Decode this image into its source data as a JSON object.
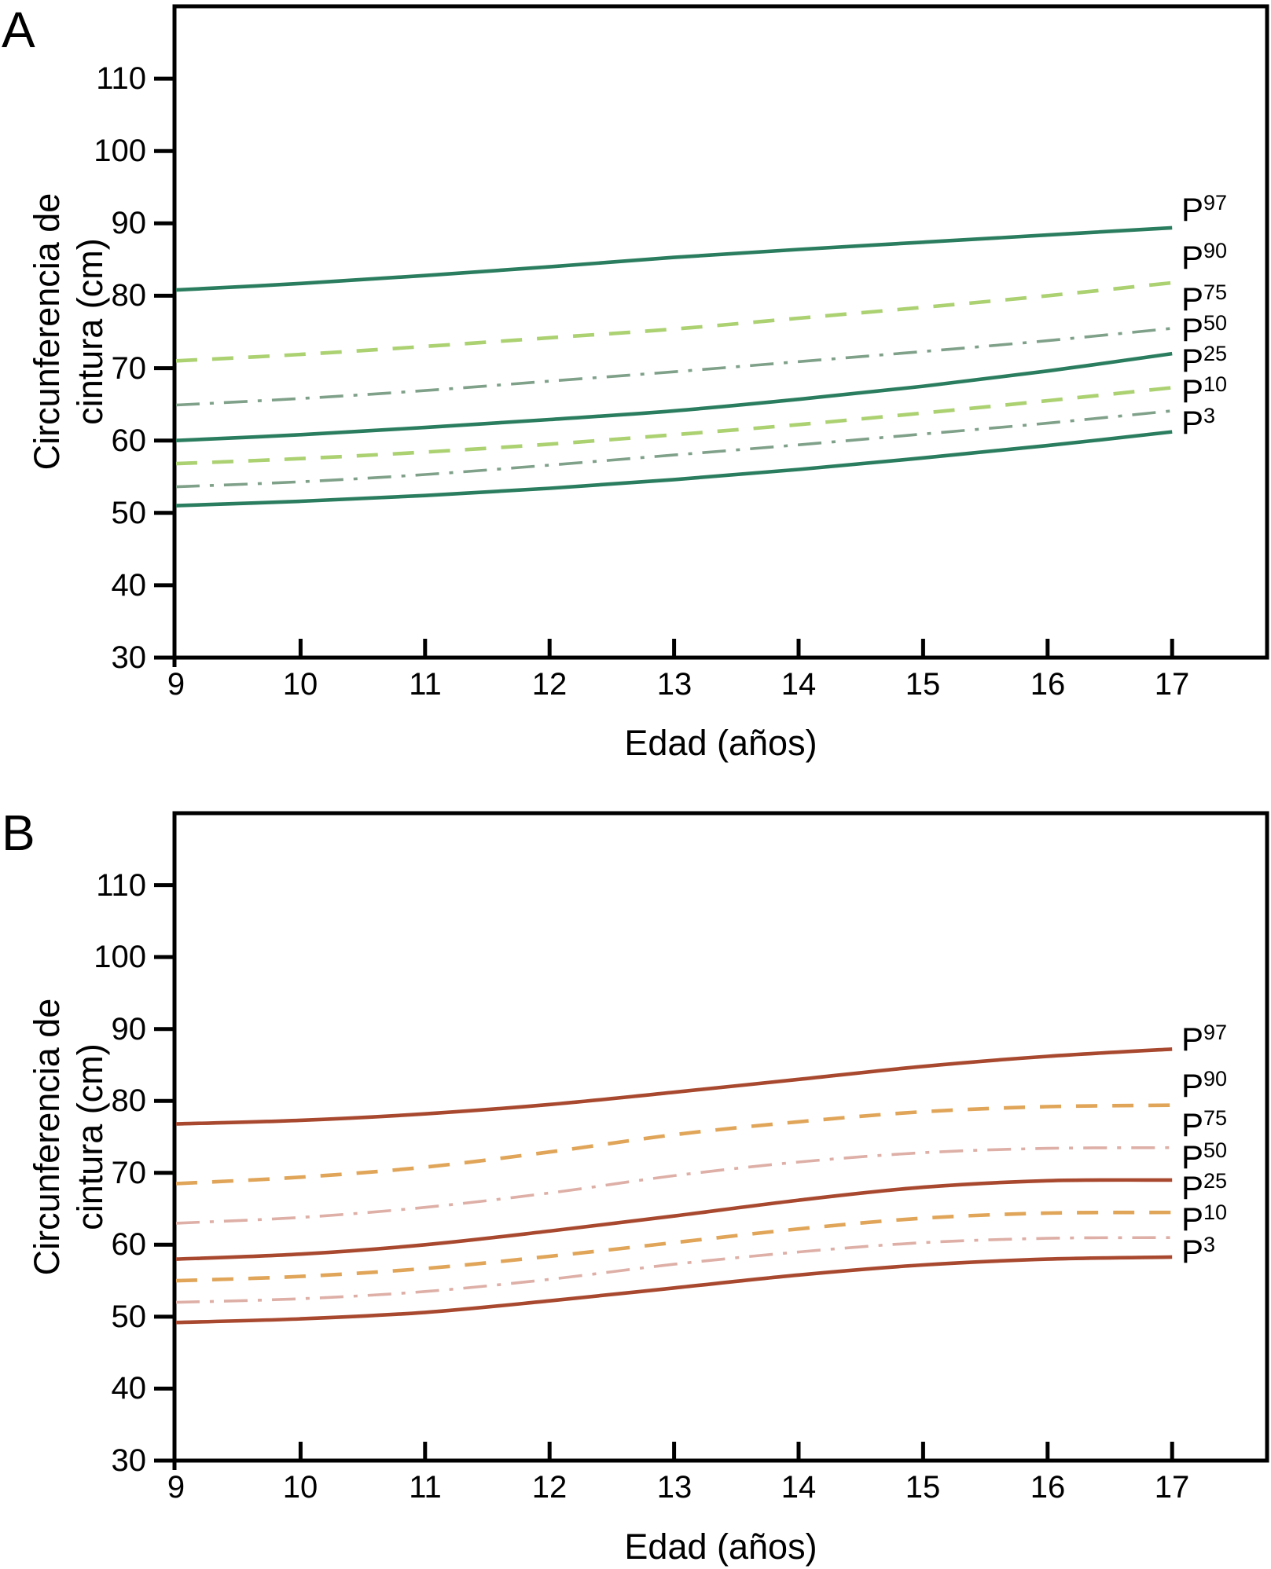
{
  "figure": {
    "background": "#ffffff",
    "axis_color": "#000000",
    "panels": [
      {
        "letter": "A",
        "ylabel_line1": "Circunferencia de",
        "ylabel_line2": "cintura (cm)",
        "xlabel": "Edad (años)"
      },
      {
        "letter": "B",
        "ylabel_line1": "Circunferencia de",
        "ylabel_line2": "cintura (cm)",
        "xlabel": "Edad (años)"
      }
    ]
  },
  "chart_data": [
    {
      "type": "line",
      "panel": "A",
      "title": "",
      "xlabel": "Edad (años)",
      "ylabel": "Circunferencia de cintura (cm)",
      "x": [
        9,
        10,
        11,
        12,
        13,
        14,
        15,
        16,
        17
      ],
      "xticks": [
        9,
        10,
        11,
        12,
        13,
        14,
        15,
        16,
        17
      ],
      "yticks": [
        30,
        40,
        50,
        60,
        70,
        80,
        90,
        100,
        110
      ],
      "xlim": [
        9,
        17.8
      ],
      "ylim": [
        30,
        120
      ],
      "grid": false,
      "legend_position": "right-of-curves",
      "series": [
        {
          "name": "P97",
          "label_base": "P",
          "label_sup": "97",
          "style": "solid",
          "color": "#2b7d5f",
          "label_y": 91.3,
          "values": [
            80.8,
            81.7,
            82.8,
            84.0,
            85.3,
            86.4,
            87.4,
            88.4,
            89.4
          ]
        },
        {
          "name": "P90",
          "label_base": "P",
          "label_sup": "90",
          "style": "dashed",
          "color": "#abd171",
          "label_y": 84.7,
          "values": [
            71.0,
            71.9,
            73.0,
            74.2,
            75.4,
            76.9,
            78.4,
            80.0,
            81.8
          ]
        },
        {
          "name": "P75",
          "label_base": "P",
          "label_sup": "75",
          "style": "dashdot",
          "color": "#7fa089",
          "label_y": 79.0,
          "values": [
            64.9,
            65.8,
            66.9,
            68.2,
            69.5,
            70.9,
            72.3,
            73.8,
            75.5
          ]
        },
        {
          "name": "P50",
          "label_base": "P",
          "label_sup": "50",
          "style": "solid",
          "color": "#2b7d5f",
          "label_y": 74.7,
          "values": [
            60.0,
            60.8,
            61.8,
            62.9,
            64.1,
            65.7,
            67.5,
            69.6,
            72.0
          ]
        },
        {
          "name": "P25",
          "label_base": "P",
          "label_sup": "25",
          "style": "dashed",
          "color": "#abd171",
          "label_y": 70.5,
          "values": [
            56.8,
            57.5,
            58.4,
            59.5,
            60.8,
            62.2,
            63.8,
            65.5,
            67.3
          ]
        },
        {
          "name": "P10",
          "label_base": "P",
          "label_sup": "10",
          "style": "dashdot",
          "color": "#7fa089",
          "label_y": 66.3,
          "values": [
            53.6,
            54.3,
            55.3,
            56.6,
            58.0,
            59.4,
            60.9,
            62.4,
            64.1
          ]
        },
        {
          "name": "P3",
          "label_base": "P",
          "label_sup": "3",
          "style": "solid",
          "color": "#2b7d5f",
          "label_y": 61.9,
          "values": [
            51.0,
            51.6,
            52.4,
            53.4,
            54.6,
            56.0,
            57.6,
            59.3,
            61.2
          ]
        }
      ]
    },
    {
      "type": "line",
      "panel": "B",
      "title": "",
      "xlabel": "Edad (años)",
      "ylabel": "Circunferencia de cintura (cm)",
      "x": [
        9,
        10,
        11,
        12,
        13,
        14,
        15,
        16,
        17
      ],
      "xticks": [
        9,
        10,
        11,
        12,
        13,
        14,
        15,
        16,
        17
      ],
      "yticks": [
        30,
        40,
        50,
        60,
        70,
        80,
        90,
        100,
        110
      ],
      "xlim": [
        9,
        17.8
      ],
      "ylim": [
        30,
        120
      ],
      "grid": false,
      "legend_position": "right-of-curves",
      "series": [
        {
          "name": "P97",
          "label_base": "P",
          "label_sup": "97",
          "style": "solid",
          "color": "#a8492f",
          "label_y": 88.0,
          "values": [
            76.8,
            77.3,
            78.2,
            79.5,
            81.2,
            83.0,
            84.8,
            86.2,
            87.2
          ]
        },
        {
          "name": "P90",
          "label_base": "P",
          "label_sup": "90",
          "style": "dashed",
          "color": "#e0a558",
          "label_y": 81.6,
          "values": [
            68.5,
            69.4,
            70.8,
            72.9,
            75.3,
            77.1,
            78.5,
            79.2,
            79.4
          ]
        },
        {
          "name": "P75",
          "label_base": "P",
          "label_sup": "75",
          "style": "dashdot",
          "color": "#ddafa6",
          "label_y": 76.1,
          "values": [
            63.0,
            63.8,
            65.2,
            67.2,
            69.6,
            71.5,
            72.8,
            73.4,
            73.5
          ]
        },
        {
          "name": "P50",
          "label_base": "P",
          "label_sup": "50",
          "style": "solid",
          "color": "#a8492f",
          "label_y": 71.6,
          "values": [
            58.0,
            58.7,
            60.0,
            61.9,
            64.0,
            66.2,
            68.0,
            68.9,
            69.0
          ]
        },
        {
          "name": "P25",
          "label_base": "P",
          "label_sup": "25",
          "style": "dashed",
          "color": "#e0a558",
          "label_y": 67.3,
          "values": [
            55.0,
            55.6,
            56.7,
            58.4,
            60.3,
            62.2,
            63.7,
            64.4,
            64.5
          ]
        },
        {
          "name": "P10",
          "label_base": "P",
          "label_sup": "10",
          "style": "dashdot",
          "color": "#ddafa6",
          "label_y": 63.0,
          "values": [
            52.0,
            52.5,
            53.5,
            55.2,
            57.3,
            59.0,
            60.3,
            60.9,
            61.0
          ]
        },
        {
          "name": "P3",
          "label_base": "P",
          "label_sup": "3",
          "style": "solid",
          "color": "#a8492f",
          "label_y": 58.5,
          "values": [
            49.2,
            49.7,
            50.6,
            52.2,
            54.0,
            55.8,
            57.2,
            58.0,
            58.3
          ]
        }
      ]
    }
  ]
}
